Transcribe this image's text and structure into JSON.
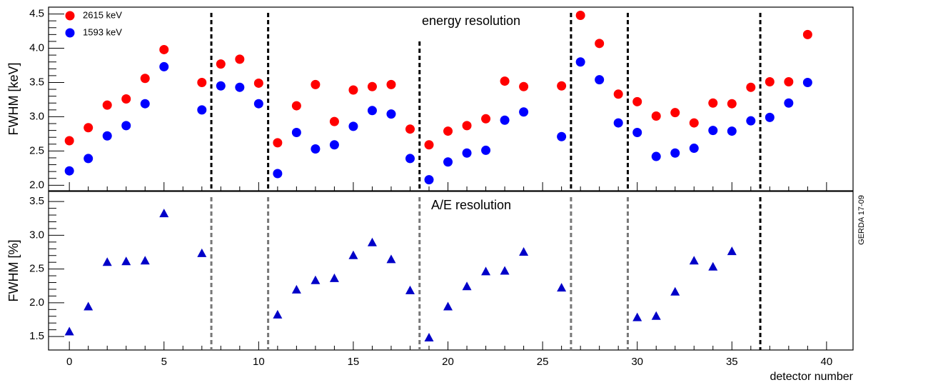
{
  "chart_data": [
    {
      "type": "scatter",
      "title": "energy resolution",
      "ylabel": "FWHM   [keV]",
      "x": [
        0,
        1,
        2,
        3,
        4,
        5,
        6,
        7,
        8,
        9,
        10,
        11,
        12,
        13,
        14,
        15,
        16,
        17,
        18,
        19,
        20,
        21,
        22,
        23,
        24,
        25,
        26,
        27,
        28,
        29,
        30,
        31,
        32,
        33,
        34,
        35,
        36,
        37,
        38,
        39
      ],
      "series": [
        {
          "name": "2615 keV",
          "color": "#ff0000",
          "marker": "circle",
          "values": [
            2.65,
            2.84,
            3.17,
            3.26,
            3.56,
            3.98,
            null,
            3.5,
            3.77,
            3.84,
            3.49,
            2.62,
            3.16,
            3.47,
            2.93,
            3.39,
            3.44,
            3.47,
            2.82,
            2.59,
            2.79,
            2.87,
            2.97,
            3.52,
            3.44,
            null,
            3.45,
            4.48,
            4.07,
            3.33,
            3.22,
            3.01,
            3.06,
            2.91,
            3.2,
            3.19,
            3.43,
            3.51,
            3.51,
            4.2
          ]
        },
        {
          "name": "1593 keV",
          "color": "#0000ff",
          "marker": "circle",
          "values": [
            2.21,
            2.39,
            2.72,
            2.87,
            3.19,
            3.73,
            null,
            3.1,
            3.45,
            3.43,
            3.19,
            2.17,
            2.77,
            2.53,
            2.59,
            2.86,
            3.09,
            3.04,
            2.39,
            2.08,
            2.34,
            2.47,
            2.51,
            2.95,
            3.07,
            null,
            2.71,
            3.8,
            3.54,
            2.91,
            2.77,
            2.42,
            2.47,
            2.54,
            2.8,
            2.79,
            2.94,
            2.99,
            3.2,
            3.5
          ]
        }
      ],
      "dividers": {
        "x": [
          7.5,
          10.5,
          18.5,
          26.5,
          29.5,
          36.5
        ],
        "colors": [
          "#000000",
          "#000000",
          "#000000",
          "#000000",
          "#000000",
          "#000000"
        ]
      },
      "xlim": [
        -1.1,
        41.4
      ],
      "xticks": [
        0,
        5,
        10,
        15,
        20,
        25,
        30,
        35,
        40
      ],
      "ylim": [
        1.92,
        4.6
      ],
      "yticks": [
        {
          "value": 2,
          "label": "2.0"
        },
        2.5,
        {
          "value": 3,
          "label": "3.0"
        },
        3.5,
        {
          "value": 4,
          "label": "4.0"
        },
        4.5
      ],
      "legend": "top-left"
    },
    {
      "type": "scatter",
      "title": "A/E resolution",
      "ylabel": "FWHM  [%]",
      "xlabel": "detector number",
      "annotation": "GERDA 17-09",
      "x": [
        0,
        1,
        2,
        3,
        4,
        5,
        6,
        7,
        8,
        9,
        10,
        11,
        12,
        13,
        14,
        15,
        16,
        17,
        18,
        19,
        20,
        21,
        22,
        23,
        24,
        25,
        26,
        27,
        28,
        29,
        30,
        31,
        32,
        33,
        34,
        35,
        36,
        37,
        38,
        39
      ],
      "series": [
        {
          "color": "#0000c8",
          "marker": "triangle",
          "values": [
            1.57,
            1.94,
            2.6,
            2.61,
            2.62,
            3.32,
            null,
            2.73,
            null,
            null,
            null,
            1.82,
            2.19,
            2.33,
            2.36,
            2.7,
            2.89,
            2.64,
            2.18,
            1.48,
            1.94,
            2.24,
            2.46,
            2.47,
            2.75,
            null,
            2.22,
            null,
            null,
            null,
            1.78,
            1.8,
            2.16,
            2.62,
            2.53,
            2.76,
            null,
            null,
            null,
            null
          ]
        }
      ],
      "dividers": {
        "x": [
          7.5,
          10.5,
          18.5,
          26.5,
          29.5,
          36.5
        ],
        "colors": [
          "#777777",
          "#777777",
          "#777777",
          "#777777",
          "#777777",
          "#000000"
        ]
      },
      "xlim": [
        -1.1,
        41.4
      ],
      "xticks": [
        0,
        5,
        10,
        15,
        20,
        25,
        30,
        35,
        40
      ],
      "ylim": [
        1.3,
        3.65
      ],
      "yticks": [
        1.5,
        {
          "value": 2,
          "label": "2.0"
        },
        2.5,
        {
          "value": 3,
          "label": "3.0"
        },
        3.5
      ]
    }
  ]
}
